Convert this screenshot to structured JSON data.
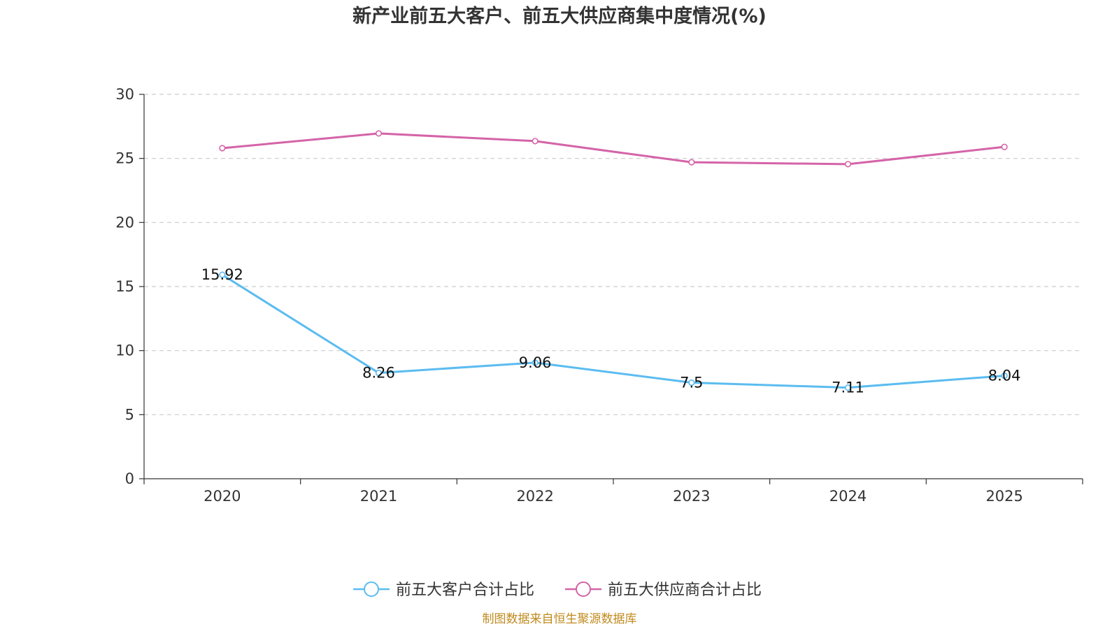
{
  "chart_data": {
    "type": "line",
    "title": "新产业前五大客户、前五大供应商集中度情况(%)",
    "categories": [
      "2020",
      "2021",
      "2022",
      "2023",
      "2024",
      "2025"
    ],
    "ylim": [
      0,
      30
    ],
    "yticks": [
      0,
      5,
      10,
      15,
      20,
      25,
      30
    ],
    "grid": true,
    "xlabel": "",
    "ylabel": "",
    "legend_position": "bottom",
    "series": [
      {
        "name": "前五大客户合计占比",
        "color": "#5bbcf0",
        "values": [
          15.92,
          8.26,
          9.06,
          7.5,
          7.11,
          8.04
        ],
        "labels": [
          "15.92",
          "8.26",
          "9.06",
          "7.5",
          "7.11",
          "8.04"
        ],
        "show_labels": true
      },
      {
        "name": "前五大供应商合计占比",
        "color": "#d464a8",
        "values": [
          25.8,
          26.95,
          26.35,
          24.7,
          24.55,
          25.9
        ],
        "show_labels": false
      }
    ],
    "source": "制图数据来自恒生聚源数据库"
  }
}
